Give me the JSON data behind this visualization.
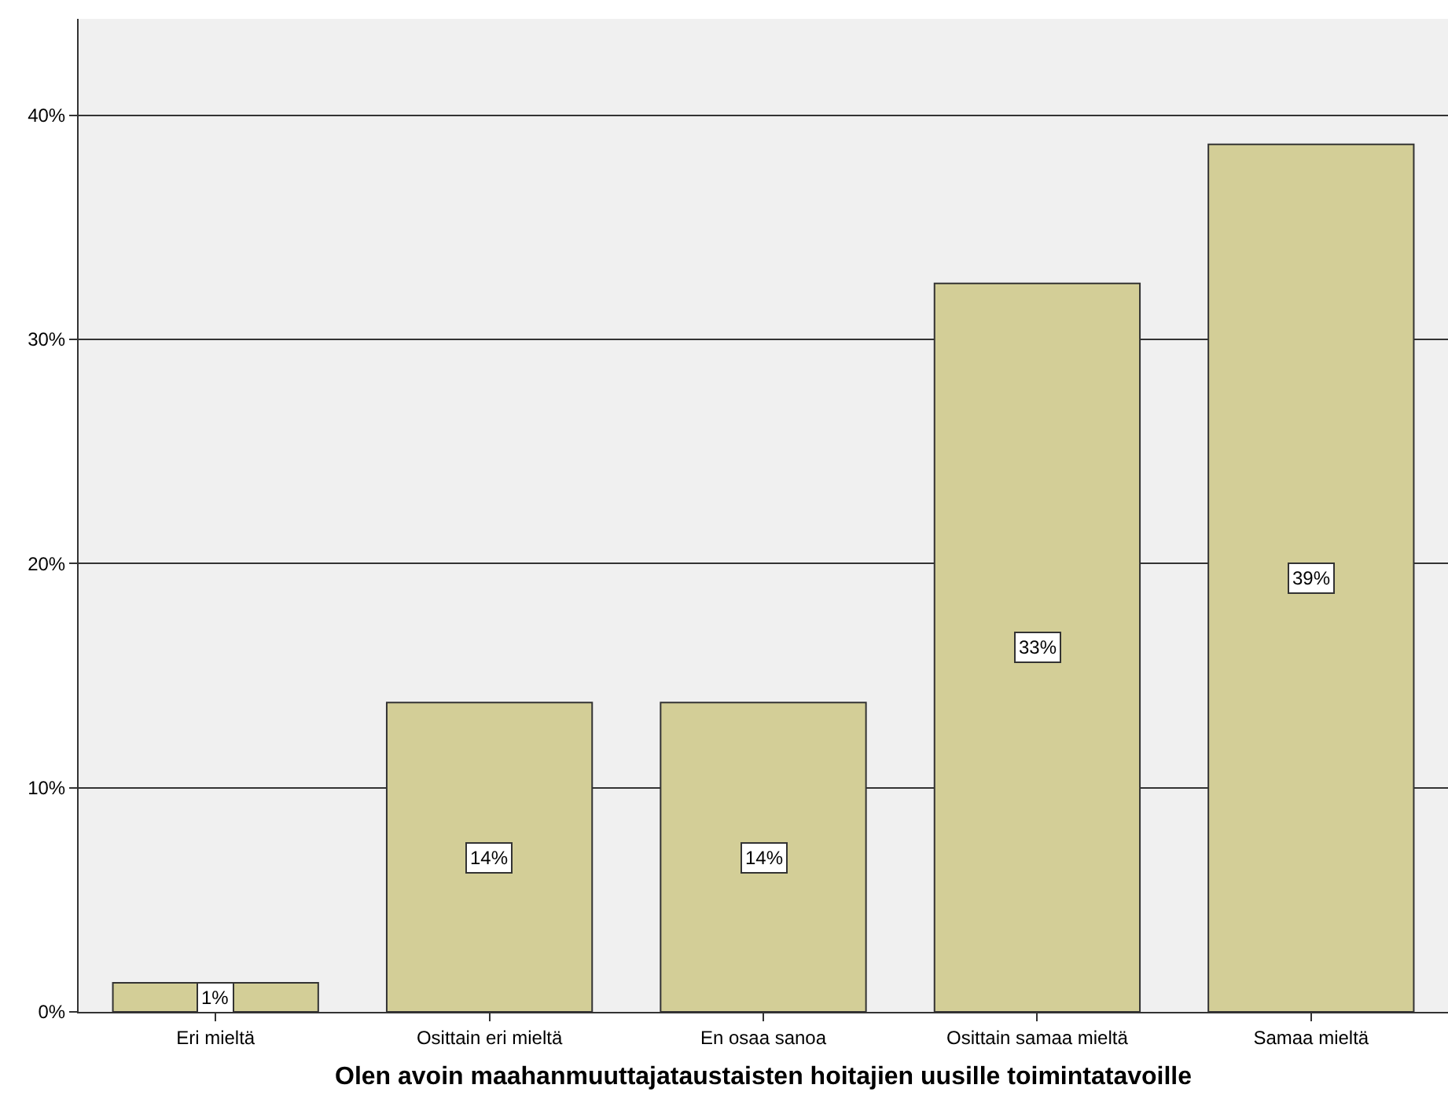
{
  "chart_data": {
    "type": "bar",
    "xlabel": "Olen avoin maahanmuuttajataustaisten hoitajien uusille toimintatavoille",
    "categories": [
      "Eri mieltä",
      "Osittain eri mieltä",
      "En osaa sanoa",
      "Osittain samaa mieltä",
      "Samaa mieltä"
    ],
    "values": [
      1.3,
      13.8,
      13.8,
      32.5,
      38.7
    ],
    "value_labels": [
      "1%",
      "14%",
      "14%",
      "33%",
      "39%"
    ],
    "color": "#d3ce97",
    "ylim": [
      0,
      44.3
    ],
    "yticks": [
      {
        "value": 0,
        "label": "0%"
      },
      {
        "value": 10,
        "label": "10%"
      },
      {
        "value": 20,
        "label": "20%"
      },
      {
        "value": 30,
        "label": "30%"
      },
      {
        "value": 40,
        "label": "40%"
      }
    ],
    "grid": "y",
    "legend": false
  }
}
